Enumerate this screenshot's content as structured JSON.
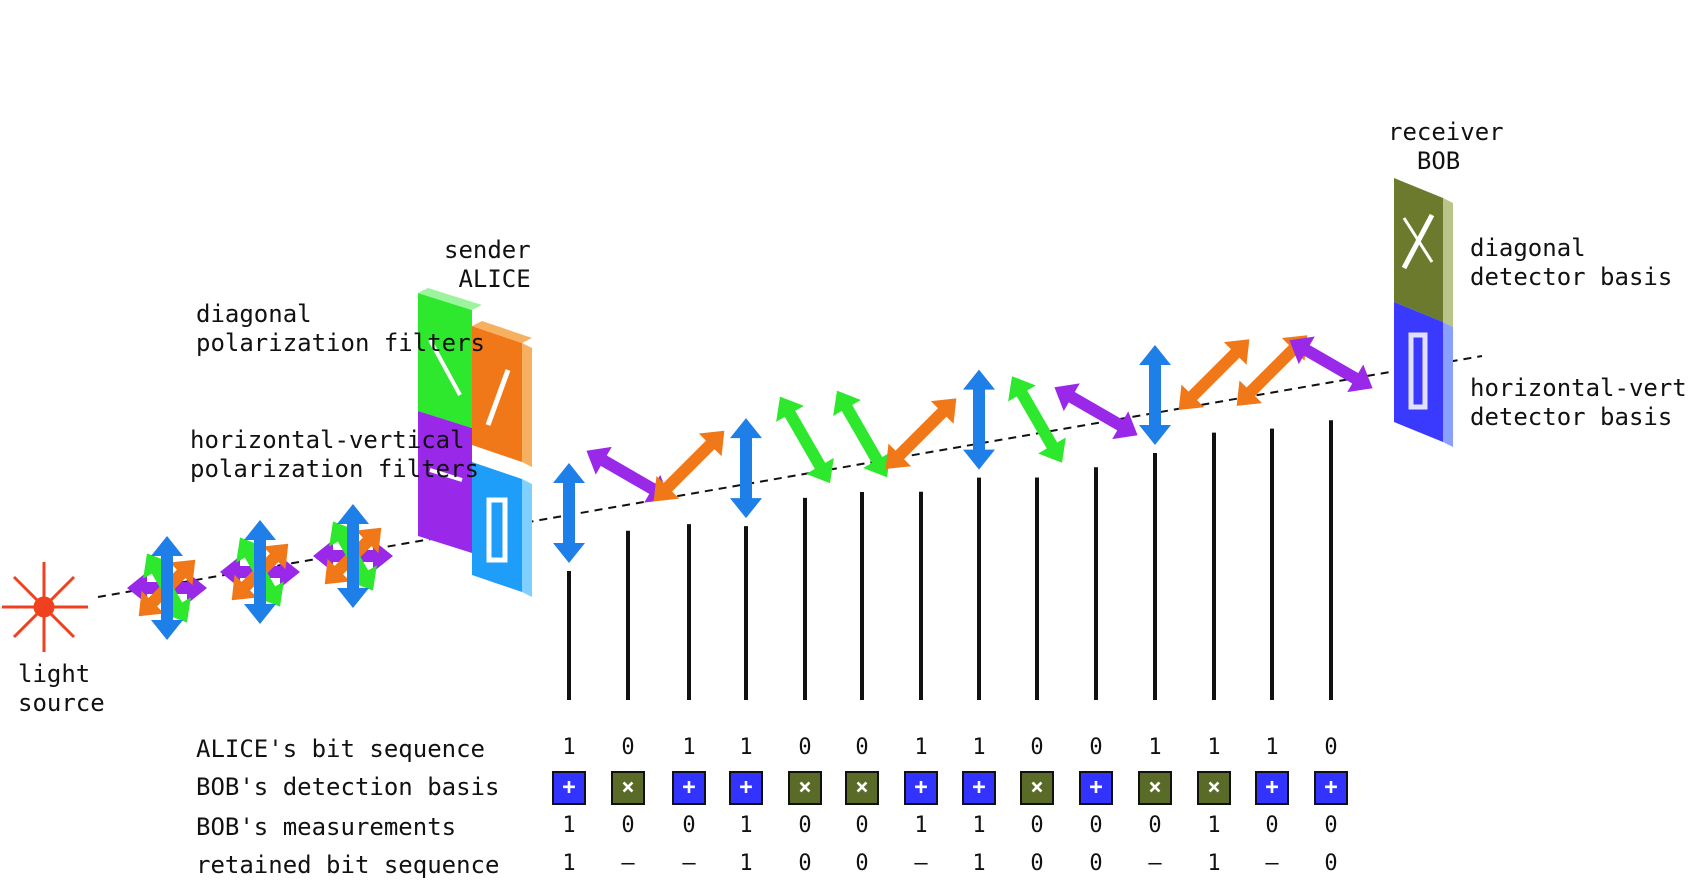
{
  "labels": {
    "light_source": [
      "light",
      "source"
    ],
    "sender": [
      "sender",
      "ALICE"
    ],
    "receiver": [
      "receiver",
      "BOB"
    ],
    "diag_filters": [
      "diagonal",
      "polarization filters"
    ],
    "hv_filters": [
      "horizontal-vertical",
      "polarization filters"
    ],
    "diag_detector": [
      "diagonal",
      "detector basis"
    ],
    "hv_detector": [
      "horizontal-vert",
      "detector basis"
    ]
  },
  "table": {
    "row_labels": [
      "ALICE's bit sequence",
      "BOB's detection basis",
      "BOB's measurements",
      "retained bit sequence"
    ],
    "alice_bits": [
      "1",
      "0",
      "1",
      "1",
      "0",
      "0",
      "1",
      "1",
      "0",
      "0",
      "1",
      "1",
      "1",
      "0"
    ],
    "bob_basis": [
      "+",
      "x",
      "+",
      "+",
      "x",
      "x",
      "+",
      "+",
      "x",
      "+",
      "x",
      "x",
      "+",
      "+"
    ],
    "bob_measurements": [
      "1",
      "0",
      "0",
      "1",
      "0",
      "0",
      "1",
      "1",
      "0",
      "0",
      "0",
      "1",
      "0",
      "0"
    ],
    "retained_bits": [
      "1",
      "–",
      "–",
      "1",
      "0",
      "0",
      "–",
      "1",
      "0",
      "0",
      "–",
      "1",
      "–",
      "0"
    ]
  },
  "photons": [
    "vertical",
    "diagonal-down",
    "diagonal-up",
    "vertical",
    "diagonal-down-green",
    "diagonal-down-green",
    "diagonal-up",
    "vertical",
    "diagonal-down-green",
    "diagonal-down",
    "vertical",
    "diagonal-up",
    "diagonal-up",
    "diagonal-down"
  ],
  "colors": {
    "plus_basis": "#3333ff",
    "x_basis": "#5a6b28",
    "vertical_photon": "#1e7fe8",
    "diagonal_up_photon": "#f07818",
    "diagonal_down_photon": "#9a28e8",
    "green_photon": "#2ee82e",
    "light_source": "#f04020"
  }
}
